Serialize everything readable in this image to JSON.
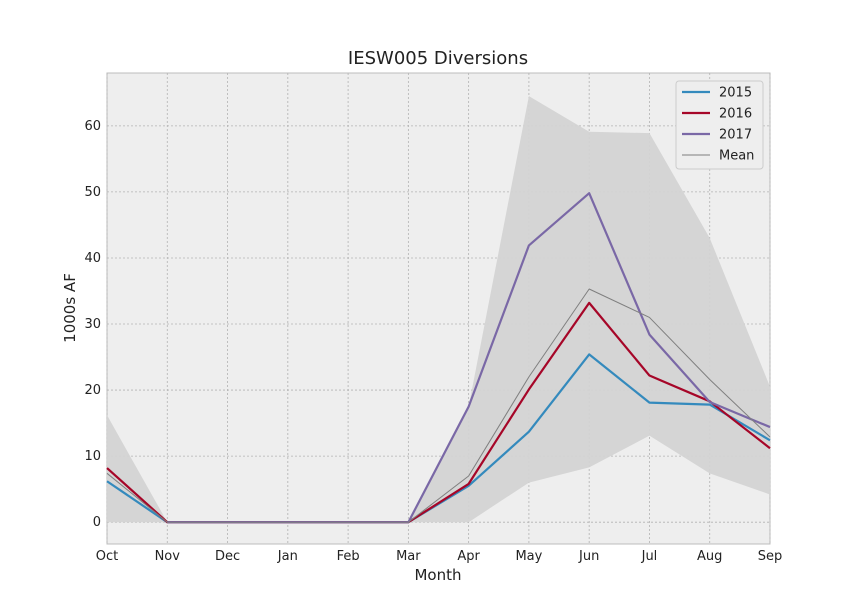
{
  "chart_data": {
    "type": "line",
    "title": "IESW005 Diversions",
    "xlabel": "Month",
    "ylabel": "1000s AF",
    "categories": [
      "Oct",
      "Nov",
      "Dec",
      "Jan",
      "Feb",
      "Mar",
      "Apr",
      "May",
      "Jun",
      "Jul",
      "Aug",
      "Sep"
    ],
    "ylim": [
      -3.3,
      68
    ],
    "yticks": [
      0,
      10,
      20,
      30,
      40,
      50,
      60
    ],
    "grid": true,
    "legend_position": "top-right",
    "band": {
      "upper": [
        16.2,
        0,
        0,
        0,
        0,
        0,
        17.5,
        64.5,
        59.1,
        58.9,
        43.0,
        20.5
      ],
      "lower": [
        0,
        0,
        0,
        0,
        0,
        0,
        0,
        6.0,
        8.3,
        13.1,
        7.4,
        4.2
      ],
      "color": "#d3d3d3"
    },
    "series": [
      {
        "name": "2015",
        "color": "#348abd",
        "values": [
          6.2,
          0,
          0,
          0,
          0,
          0,
          5.5,
          13.7,
          25.4,
          18.1,
          17.8,
          12.4
        ]
      },
      {
        "name": "2016",
        "color": "#a60628",
        "values": [
          8.2,
          0,
          0,
          0,
          0,
          0,
          5.8,
          20.1,
          33.2,
          22.2,
          18.3,
          11.2
        ]
      },
      {
        "name": "2017",
        "color": "#7a68a6",
        "values": [
          null,
          0,
          0,
          0,
          0,
          0,
          17.5,
          41.9,
          49.8,
          28.4,
          18.2,
          14.4
        ]
      },
      {
        "name": "Mean",
        "color": "#7f7f7f",
        "values": [
          7.4,
          0,
          0,
          0,
          0,
          0,
          7.0,
          22.0,
          35.3,
          31.0,
          21.6,
          12.9
        ]
      }
    ]
  }
}
